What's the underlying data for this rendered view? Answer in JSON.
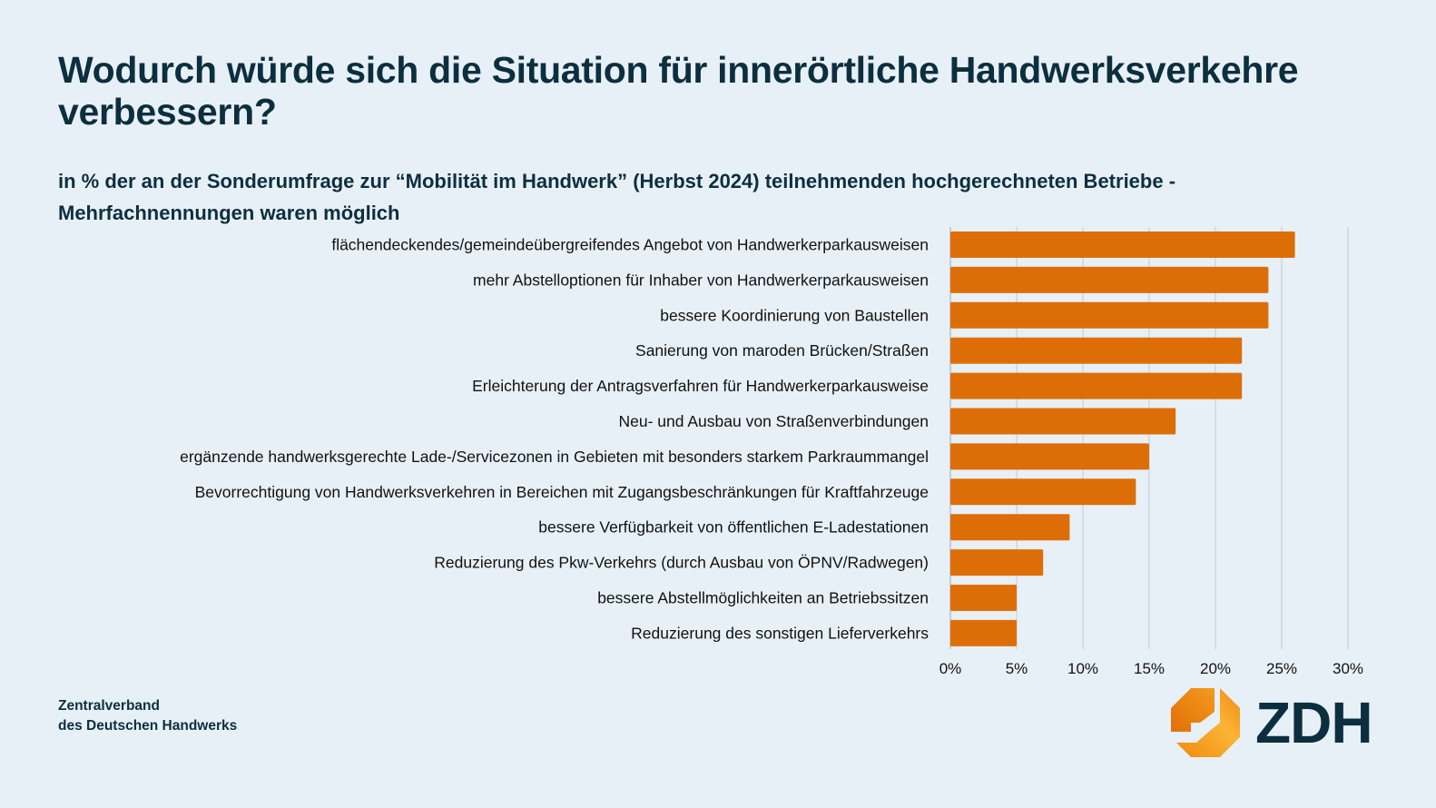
{
  "title": "Wodurch würde sich die Situation für innerörtliche Handwerksverkehre verbessern?",
  "subtitle": "in % der an der Sonderumfrage zur “Mobilität im Handwerk” (Herbst 2024) teilnehmenden hochgerechneten Betriebe  - Mehrfachnennungen waren möglich",
  "footer": {
    "line1": "Zentralverband",
    "line2": "des Deutschen Handwerks"
  },
  "logo": {
    "text": "ZDH",
    "icon": "zdh-octagon-logo-icon"
  },
  "colors": {
    "bar": "#DD6E07",
    "text_dark": "#0C2F3F",
    "background": "#E8F0F7",
    "grid": "#C9D0D6"
  },
  "chart_data": {
    "type": "bar",
    "orientation": "horizontal",
    "title": "Wodurch würde sich die Situation für innerörtliche Handwerksverkehre verbessern?",
    "subtitle": "in % der an der Sonderumfrage zur “Mobilität im Handwerk” (Herbst 2024) teilnehmenden hochgerechneten Betriebe  - Mehrfachnennungen waren möglich",
    "xlabel": "",
    "ylabel": "",
    "unit": "%",
    "xlim": [
      0,
      30
    ],
    "xticks": [
      0,
      5,
      10,
      15,
      20,
      25,
      30
    ],
    "xtick_labels": [
      "0%",
      "5%",
      "10%",
      "15%",
      "20%",
      "25%",
      "30%"
    ],
    "grid": "vertical",
    "legend": "none",
    "categories": [
      "flächendeckendes/gemeindeübergreifendes Angebot von Handwerkerparkausweisen",
      "mehr Abstelloptionen für Inhaber von Handwerkerparkausweisen",
      "bessere Koordinierung von Baustellen",
      "Sanierung von maroden Brücken/Straßen",
      "Erleichterung der Antragsverfahren für Handwerkerparkausweise",
      "Neu- und Ausbau von Straßenverbindungen",
      "ergänzende handwerksgerechte Lade-/Servicezonen in Gebieten mit besonders starkem Parkraummangel",
      "Bevorrechtigung von Handwerksverkehren in Bereichen mit Zugangsbeschränkungen für Kraftfahrzeuge",
      "bessere Verfügbarkeit von öffentlichen E-Ladestationen",
      "Reduzierung des Pkw-Verkehrs (durch Ausbau von ÖPNV/Radwegen)",
      "bessere Abstellmöglichkeiten an Betriebssitzen",
      "Reduzierung des sonstigen Lieferverkehrs"
    ],
    "values": [
      26,
      24,
      24,
      22,
      22,
      17,
      15,
      14,
      9,
      7,
      5,
      5
    ]
  }
}
